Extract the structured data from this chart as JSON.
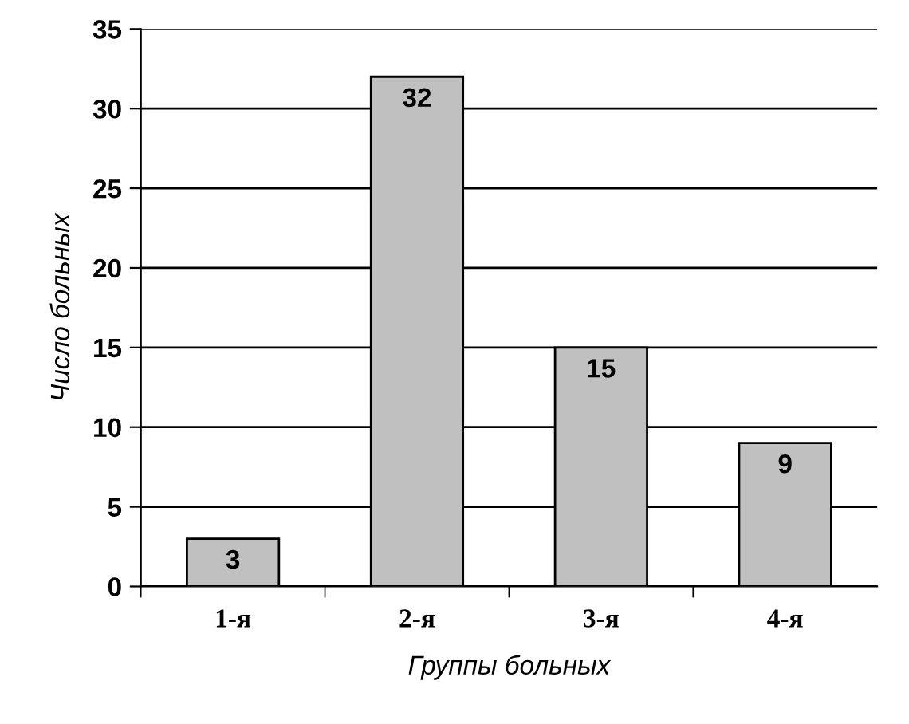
{
  "chart_data": {
    "type": "bar",
    "xlabel": "Группы больных",
    "ylabel": "Число больных",
    "categories": [
      "1-я",
      "2-я",
      "3-я",
      "4-я"
    ],
    "values": [
      3,
      32,
      15,
      9
    ],
    "color": "#c0c0c0",
    "ylim": [
      0,
      35
    ],
    "yticks": [
      0,
      5,
      10,
      15,
      20,
      25,
      30,
      35
    ],
    "grid": "y",
    "data_labels": true
  }
}
